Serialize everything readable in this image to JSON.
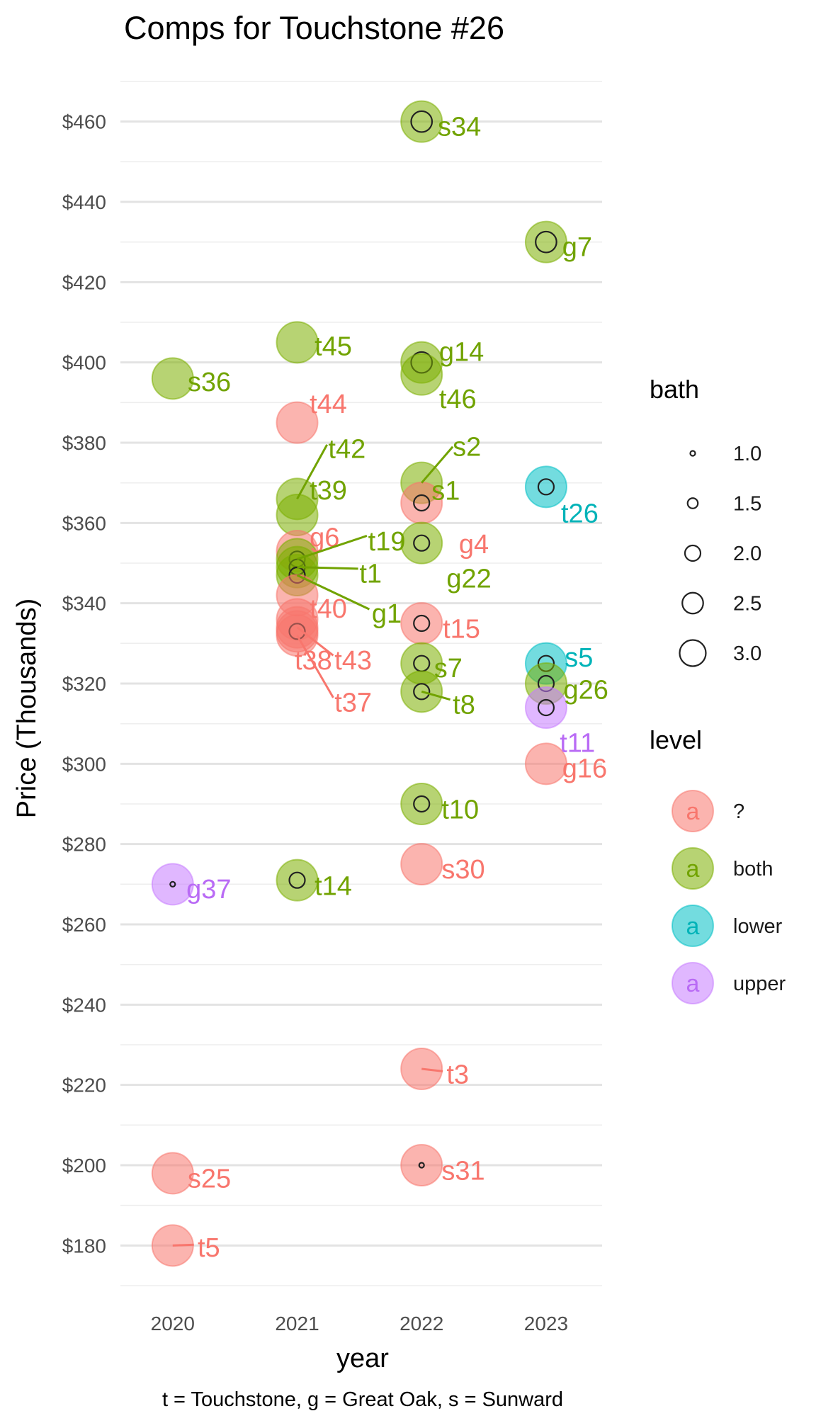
{
  "chart_data": {
    "type": "scatter",
    "title": "Comps for Touchstone #26",
    "xlabel": "year",
    "ylabel": "Price (Thousands)",
    "caption": "t = Touchstone, g = Great Oak, s = Sunward",
    "x_ticks": [
      "2020",
      "2021",
      "2022",
      "2023"
    ],
    "y_ticks": [
      "$180",
      "$200",
      "$220",
      "$240",
      "$260",
      "$280",
      "$300",
      "$320",
      "$340",
      "$360",
      "$380",
      "$400",
      "$420",
      "$440",
      "$460"
    ],
    "xlim": [
      2019.58,
      2023.45
    ],
    "ylim": [
      170,
      470
    ],
    "grid": true,
    "legend_position": "right",
    "colors": {
      "?": "#F8766D",
      "both": "#7CAE00",
      "lower": "#00BFC4",
      "upper": "#C77CFF"
    },
    "label_colors": {
      "?": "#F8766D",
      "both": "#71A300",
      "lower": "#00B3B8",
      "upper": "#B96BF5"
    },
    "bath_legend": {
      "title": "bath",
      "values": [
        "1.0",
        "1.5",
        "2.0",
        "2.5",
        "3.0"
      ]
    },
    "level_legend": {
      "title": "level",
      "key_glyph": "a",
      "values": [
        "?",
        "both",
        "lower",
        "upper"
      ]
    },
    "points": [
      {
        "label": "s36",
        "year": 2020,
        "price": 396,
        "level": "both",
        "bath": null
      },
      {
        "label": "g37",
        "year": 2020,
        "price": 270,
        "level": "upper",
        "bath": 1.0
      },
      {
        "label": "s25",
        "year": 2020,
        "price": 198,
        "level": "?",
        "bath": null
      },
      {
        "label": "t5",
        "year": 2020,
        "price": 180,
        "level": "?",
        "bath": null
      },
      {
        "label": "t45",
        "year": 2021,
        "price": 405,
        "level": "both",
        "bath": null
      },
      {
        "label": "t44",
        "year": 2021,
        "price": 385,
        "level": "?",
        "bath": null
      },
      {
        "label": "t42",
        "year": 2021,
        "price": 366,
        "level": "both",
        "bath": null
      },
      {
        "label": "t39",
        "year": 2021,
        "price": 362,
        "level": "both",
        "bath": null
      },
      {
        "label": "g6",
        "year": 2021,
        "price": 353,
        "level": "?",
        "bath": null
      },
      {
        "label": "t19",
        "year": 2021,
        "price": 351,
        "level": "both",
        "bath": 2.0
      },
      {
        "label": "t1",
        "year": 2021,
        "price": 349,
        "level": "both",
        "bath": 2.0
      },
      {
        "label": "g1",
        "year": 2021,
        "price": 347,
        "level": "both",
        "bath": 2.0
      },
      {
        "label": "g1",
        "year": 2021,
        "price": 342,
        "level": "?",
        "bath": null
      },
      {
        "label": "t40",
        "year": 2021,
        "price": 336,
        "level": "?",
        "bath": null
      },
      {
        "label": "t43",
        "year": 2021,
        "price": 334,
        "level": "?",
        "bath": null
      },
      {
        "label": "t38",
        "year": 2021,
        "price": 333,
        "level": "?",
        "bath": 2.0
      },
      {
        "label": "t37",
        "year": 2021,
        "price": 332,
        "level": "?",
        "bath": null
      },
      {
        "label": "t14",
        "year": 2021,
        "price": 271,
        "level": "both",
        "bath": 2.0
      },
      {
        "label": "s34",
        "year": 2022,
        "price": 460,
        "level": "both",
        "bath": 2.5
      },
      {
        "label": "g14",
        "year": 2022,
        "price": 400,
        "level": "both",
        "bath": 2.5
      },
      {
        "label": "t46",
        "year": 2022,
        "price": 397,
        "level": "both",
        "bath": null
      },
      {
        "label": "s2",
        "year": 2022,
        "price": 370,
        "level": "both",
        "bath": null
      },
      {
        "label": "s1",
        "year": 2022,
        "price": 365,
        "level": "?",
        "bath": 2.0
      },
      {
        "label": "g22",
        "year": 2022,
        "price": 355,
        "level": "both",
        "bath": 2.0
      },
      {
        "label": "t15",
        "year": 2022,
        "price": 335,
        "level": "?",
        "bath": 2.0
      },
      {
        "label": "s7",
        "year": 2022,
        "price": 325,
        "level": "both",
        "bath": 2.0
      },
      {
        "label": "t8",
        "year": 2022,
        "price": 318,
        "level": "both",
        "bath": 2.0
      },
      {
        "label": "t10",
        "year": 2022,
        "price": 290,
        "level": "both",
        "bath": 2.0
      },
      {
        "label": "s30",
        "year": 2022,
        "price": 275,
        "level": "?",
        "bath": null
      },
      {
        "label": "t3",
        "year": 2022,
        "price": 224,
        "level": "?",
        "bath": null
      },
      {
        "label": "s31",
        "year": 2022,
        "price": 200,
        "level": "?",
        "bath": 1.0
      },
      {
        "label": "g7",
        "year": 2023,
        "price": 430,
        "level": "both",
        "bath": 2.5
      },
      {
        "label": "t26",
        "year": 2023,
        "price": 369,
        "level": "lower",
        "bath": 2.0
      },
      {
        "label": "s5",
        "year": 2023,
        "price": 325,
        "level": "lower",
        "bath": 2.0
      },
      {
        "label": "g26",
        "year": 2023,
        "price": 320,
        "level": "both",
        "bath": 2.0
      },
      {
        "label": "t11",
        "year": 2023,
        "price": 314,
        "level": "upper",
        "bath": 2.0
      },
      {
        "label": "g16",
        "year": 2023,
        "price": 300,
        "level": "?",
        "bath": null
      }
    ],
    "labels": [
      {
        "text": "s36",
        "x": 2020.12,
        "y": 395.2,
        "level": "both"
      },
      {
        "text": "g37",
        "x": 2020.11,
        "y": 268.8,
        "level": "upper"
      },
      {
        "text": "s25",
        "x": 2020.12,
        "y": 196.7,
        "level": "?"
      },
      {
        "text": "t5",
        "x": 2020.2,
        "y": 179.5,
        "level": "?",
        "lx": 2020.17
      },
      {
        "text": "t45",
        "x": 2021.14,
        "y": 404.1,
        "level": "both"
      },
      {
        "text": "t44",
        "x": 2021.1,
        "y": 389.7,
        "level": "?"
      },
      {
        "text": "t42",
        "x": 2021.25,
        "y": 378.5,
        "level": "both",
        "lx": 2021.24,
        "ly": 379.5
      },
      {
        "text": "t39",
        "x": 2021.1,
        "y": 368.2,
        "level": "both"
      },
      {
        "text": "g6",
        "x": 2021.1,
        "y": 356.4,
        "level": "?"
      },
      {
        "text": "t19",
        "x": 2021.57,
        "y": 355.5,
        "level": "both",
        "lx": 2021.56,
        "ly": 356.8
      },
      {
        "text": "t1",
        "x": 2021.5,
        "y": 347.4,
        "level": "both",
        "lx": 2021.49,
        "ly": 348.6
      },
      {
        "text": "g1",
        "x": 2021.6,
        "y": 337.5,
        "level": "both",
        "lx": 2021.58,
        "ly": 338.5
      },
      {
        "text": "t40",
        "x": 2021.1,
        "y": 338.7,
        "level": "?"
      },
      {
        "text": "t38",
        "x": 2020.98,
        "y": 325.8,
        "level": "?"
      },
      {
        "text": "t43",
        "x": 2021.3,
        "y": 325.8,
        "level": "?",
        "lx": 2021.29,
        "ly": 327.0
      },
      {
        "text": "t37",
        "x": 2021.3,
        "y": 315.3,
        "level": "?",
        "lx": 2021.29,
        "ly": 316.5
      },
      {
        "text": "t14",
        "x": 2021.14,
        "y": 269.6,
        "level": "both"
      },
      {
        "text": "s34",
        "x": 2022.13,
        "y": 458.8,
        "level": "both"
      },
      {
        "text": "g14",
        "x": 2022.14,
        "y": 402.7,
        "level": "both"
      },
      {
        "text": "t46",
        "x": 2022.14,
        "y": 390.9,
        "level": "both"
      },
      {
        "text": "s2",
        "x": 2022.25,
        "y": 379.0,
        "level": "both",
        "lx": 2022.25,
        "ly": 379.0
      },
      {
        "text": "s1",
        "x": 2022.08,
        "y": 368.1,
        "level": "both"
      },
      {
        "text": "g4",
        "x": 2022.3,
        "y": 354.8,
        "level": "?",
        "lx": 2022.28,
        "ly": 357.5
      },
      {
        "text": "g22",
        "x": 2022.2,
        "y": 346.2,
        "level": "both"
      },
      {
        "text": "t15",
        "x": 2022.17,
        "y": 333.7,
        "level": "?"
      },
      {
        "text": "s7",
        "x": 2022.1,
        "y": 323.9,
        "level": "both"
      },
      {
        "text": "t8",
        "x": 2022.25,
        "y": 314.8,
        "level": "both",
        "lx": 2022.23,
        "ly": 316.0
      },
      {
        "text": "t10",
        "x": 2022.16,
        "y": 288.7,
        "level": "both"
      },
      {
        "text": "s30",
        "x": 2022.16,
        "y": 273.8,
        "level": "?"
      },
      {
        "text": "t3",
        "x": 2022.2,
        "y": 222.7,
        "level": "?",
        "lx": 2022.17
      },
      {
        "text": "s31",
        "x": 2022.16,
        "y": 198.7,
        "level": "?"
      },
      {
        "text": "g7",
        "x": 2023.13,
        "y": 428.8,
        "level": "both"
      },
      {
        "text": "t26",
        "x": 2023.12,
        "y": 362.4,
        "level": "lower"
      },
      {
        "text": "s5",
        "x": 2023.15,
        "y": 326.5,
        "level": "lower"
      },
      {
        "text": "g26",
        "x": 2023.14,
        "y": 318.5,
        "level": "both"
      },
      {
        "text": "t11",
        "x": 2023.11,
        "y": 305.3,
        "level": "upper"
      },
      {
        "text": "g16",
        "x": 2023.13,
        "y": 298.9,
        "level": "?"
      }
    ]
  }
}
